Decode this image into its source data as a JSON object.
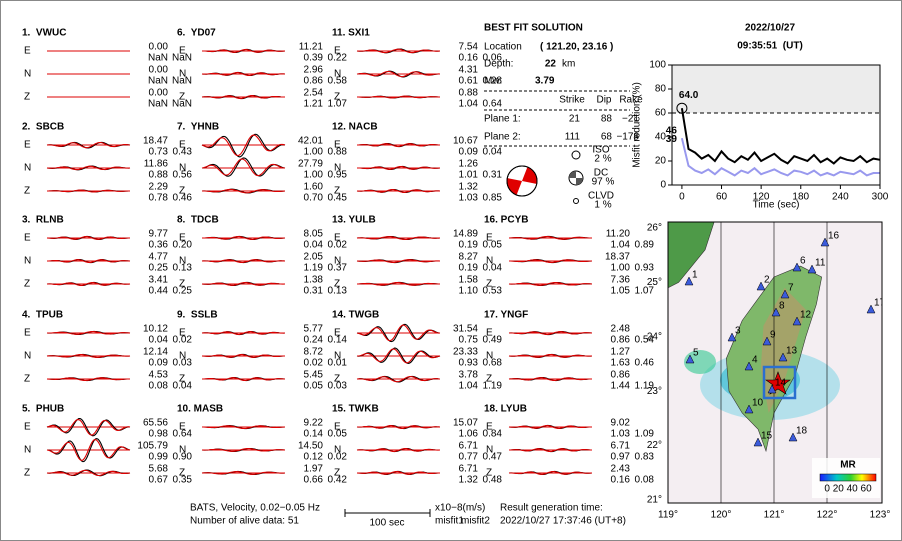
{
  "components": [
    "E",
    "N",
    "Z"
  ],
  "stations": [
    {
      "name": "1.  VWUC",
      "traces": [
        [
          "0.00",
          "NaN",
          "NaN"
        ],
        [
          "0.00",
          "NaN",
          "NaN"
        ],
        [
          "0.00",
          "NaN",
          "NaN"
        ]
      ]
    },
    {
      "name": "2.  SBCB",
      "traces": [
        [
          "18.47",
          "0.73",
          "0.43"
        ],
        [
          "11.86",
          "0.88",
          "0.56"
        ],
        [
          "2.29",
          "0.78",
          "0.46"
        ]
      ]
    },
    {
      "name": "3.  RLNB",
      "traces": [
        [
          "9.77",
          "0.36",
          "0.20"
        ],
        [
          "4.77",
          "0.25",
          "0.13"
        ],
        [
          "3.41",
          "0.44",
          "0.25"
        ]
      ]
    },
    {
      "name": "4.  TPUB",
      "traces": [
        [
          "10.12",
          "0.04",
          "0.02"
        ],
        [
          "12.14",
          "0.09",
          "0.03"
        ],
        [
          "4.53",
          "0.08",
          "0.04"
        ]
      ]
    },
    {
      "name": "5.  PHUB",
      "traces": [
        [
          "65.56",
          "0.98",
          "0.64"
        ],
        [
          "105.79",
          "0.99",
          "0.90"
        ],
        [
          "5.68",
          "0.67",
          "0.35"
        ]
      ]
    },
    {
      "name": "6.  YD07",
      "traces": [
        [
          "11.21",
          "0.39",
          "0.22"
        ],
        [
          "2.96",
          "0.86",
          "0.58"
        ],
        [
          "2.54",
          "1.21",
          "1.07"
        ]
      ]
    },
    {
      "name": "7.  YHNB",
      "traces": [
        [
          "42.01",
          "1.00",
          "0.88"
        ],
        [
          "27.79",
          "1.00",
          "0.95"
        ],
        [
          "1.60",
          "0.70",
          "0.45"
        ]
      ]
    },
    {
      "name": "8.  TDCB",
      "traces": [
        [
          "8.05",
          "0.04",
          "0.02"
        ],
        [
          "2.05",
          "1.19",
          "0.37"
        ],
        [
          "1.38",
          "0.31",
          "0.13"
        ]
      ]
    },
    {
      "name": "9.  SSLB",
      "traces": [
        [
          "5.77",
          "0.24",
          "0.14"
        ],
        [
          "8.72",
          "0.02",
          "0.01"
        ],
        [
          "5.45",
          "0.05",
          "0.03"
        ]
      ]
    },
    {
      "name": "10. MASB",
      "traces": [
        [
          "9.22",
          "0.14",
          "0.05"
        ],
        [
          "14.50",
          "0.12",
          "0.02"
        ],
        [
          "1.97",
          "0.66",
          "0.42"
        ]
      ]
    },
    {
      "name": "11. SXI1",
      "traces": [
        [
          "7.54",
          "0.16",
          "0.06"
        ],
        [
          "4.31",
          "0.61",
          "0.28"
        ],
        [
          "0.88",
          "1.04",
          "0.64"
        ]
      ]
    },
    {
      "name": "12. NACB",
      "traces": [
        [
          "10.67",
          "0.09",
          "0.04"
        ],
        [
          "1.26",
          "1.01",
          "0.31"
        ],
        [
          "1.32",
          "1.03",
          "0.85"
        ]
      ]
    },
    {
      "name": "13. YULB",
      "traces": [
        [
          "14.89",
          "0.19",
          "0.05"
        ],
        [
          "8.27",
          "0.19",
          "0.04"
        ],
        [
          "1.58",
          "1.10",
          "0.53"
        ]
      ]
    },
    {
      "name": "14. TWGB",
      "traces": [
        [
          "31.54",
          "0.75",
          "0.49"
        ],
        [
          "23.33",
          "0.93",
          "0.68"
        ],
        [
          "3.78",
          "1.04",
          "1.19"
        ]
      ]
    },
    {
      "name": "15. TWKB",
      "traces": [
        [
          "15.07",
          "1.06",
          "0.84"
        ],
        [
          "6.71",
          "0.77",
          "0.47"
        ],
        [
          "6.71",
          "1.32",
          "0.48"
        ]
      ]
    },
    {
      "name": "16. PCYB",
      "traces": [
        [
          "11.20",
          "1.04",
          "0.89"
        ],
        [
          "18.37",
          "1.00",
          "0.93"
        ],
        [
          "7.36",
          "1.05",
          "1.07"
        ]
      ]
    },
    {
      "name": "17. YNGF",
      "traces": [
        [
          "2.48",
          "0.86",
          "0.54"
        ],
        [
          "1.27",
          "1.63",
          "0.46"
        ],
        [
          "0.86",
          "1.44",
          "1.19"
        ]
      ]
    },
    {
      "name": "18. LYUB",
      "traces": [
        [
          "9.02",
          "1.03",
          "1.09"
        ],
        [
          "6.71",
          "0.97",
          "0.83"
        ],
        [
          "2.43",
          "0.16",
          "0.08"
        ]
      ]
    }
  ],
  "solution": {
    "title": "BEST FIT SOLUTION",
    "location_label": "Location",
    "location": "( 121.20, 23.16 )",
    "depth_label": "Depth:",
    "depth": "22",
    "depth_unit": "km",
    "mw_label": "Mw:",
    "mw": "3.79",
    "headers": [
      "Strike",
      "Dip",
      "Rake"
    ],
    "planes": [
      {
        "label": "Plane 1:",
        "values": [
          "21",
          "88",
          "−21"
        ]
      },
      {
        "label": "Plane 2:",
        "values": [
          "111",
          "68",
          "−178"
        ]
      }
    ],
    "iso": {
      "label": "ISO",
      "value": "2 %"
    },
    "dc": {
      "label": "DC",
      "value": "97 %"
    },
    "clvd": {
      "label": "CLVD",
      "value": "1 %"
    }
  },
  "origin_time": {
    "date": "2022/10/27",
    "time": "09:35:51  (UT)"
  },
  "footer": {
    "network": "BATS, Velocity, 0.02−0.05 Hz",
    "alive": "Number of alive data: 51",
    "scale": "100 sec",
    "units": "x10−8(m/s)",
    "misfit1": "misfit1",
    "misfit2": "misfit2",
    "result_label": "Result generation time:",
    "result_time": "2022/10/27 17:37:46 (UT+8)"
  },
  "map": {
    "stations": [
      "1",
      "2",
      "3",
      "4",
      "5",
      "6",
      "7",
      "8",
      "9",
      "10",
      "11",
      "12",
      "13",
      "14",
      "15",
      "16",
      "17",
      "18"
    ],
    "lon_labels": [
      "119°",
      "120°",
      "121°",
      "122°",
      "123°"
    ],
    "lat_labels": [
      "26°",
      "25°",
      "24°",
      "23°",
      "22°",
      "21°"
    ],
    "colorbar_title": "MR",
    "colorbar_labels": "0 20 40 60"
  },
  "chart_data": {
    "type": "line",
    "xlabel": "Time (sec)",
    "ylabel": "Misfit reduction (%)",
    "x": [
      0,
      10,
      20,
      30,
      40,
      50,
      60,
      70,
      80,
      90,
      100,
      110,
      120,
      130,
      140,
      150,
      160,
      170,
      180,
      190,
      200,
      210,
      220,
      230,
      240,
      250,
      260,
      270,
      280,
      290,
      300
    ],
    "series": [
      {
        "color": "#000000",
        "values": [
          64,
          30,
          27,
          22,
          25,
          20,
          28,
          22,
          19,
          24,
          21,
          27,
          20,
          23,
          26,
          21,
          18,
          24,
          22,
          20,
          25,
          19,
          22,
          18,
          23,
          21,
          20,
          24,
          19,
          22,
          21
        ]
      },
      {
        "color": "#9999ee",
        "values": [
          39,
          16,
          12,
          10,
          13,
          9,
          14,
          11,
          8,
          12,
          10,
          14,
          9,
          11,
          13,
          10,
          8,
          12,
          11,
          9,
          12,
          8,
          10,
          8,
          11,
          10,
          9,
          12,
          8,
          10,
          10
        ]
      }
    ],
    "annotations": [
      {
        "text": "64.0",
        "x": 0,
        "y": 64,
        "color": "#e00000"
      },
      {
        "text": "46",
        "x": 0,
        "y": 46,
        "color": "#aaaaaa"
      },
      {
        "text": "39",
        "x": 0,
        "y": 39,
        "color": "#9999ee"
      }
    ],
    "hline": 60,
    "xlim": [
      -15,
      300
    ],
    "ylim": [
      0,
      100
    ],
    "xticks": [
      0,
      60,
      120,
      180,
      240,
      300
    ],
    "yticks": [
      0,
      20,
      40,
      60,
      80,
      100
    ]
  }
}
